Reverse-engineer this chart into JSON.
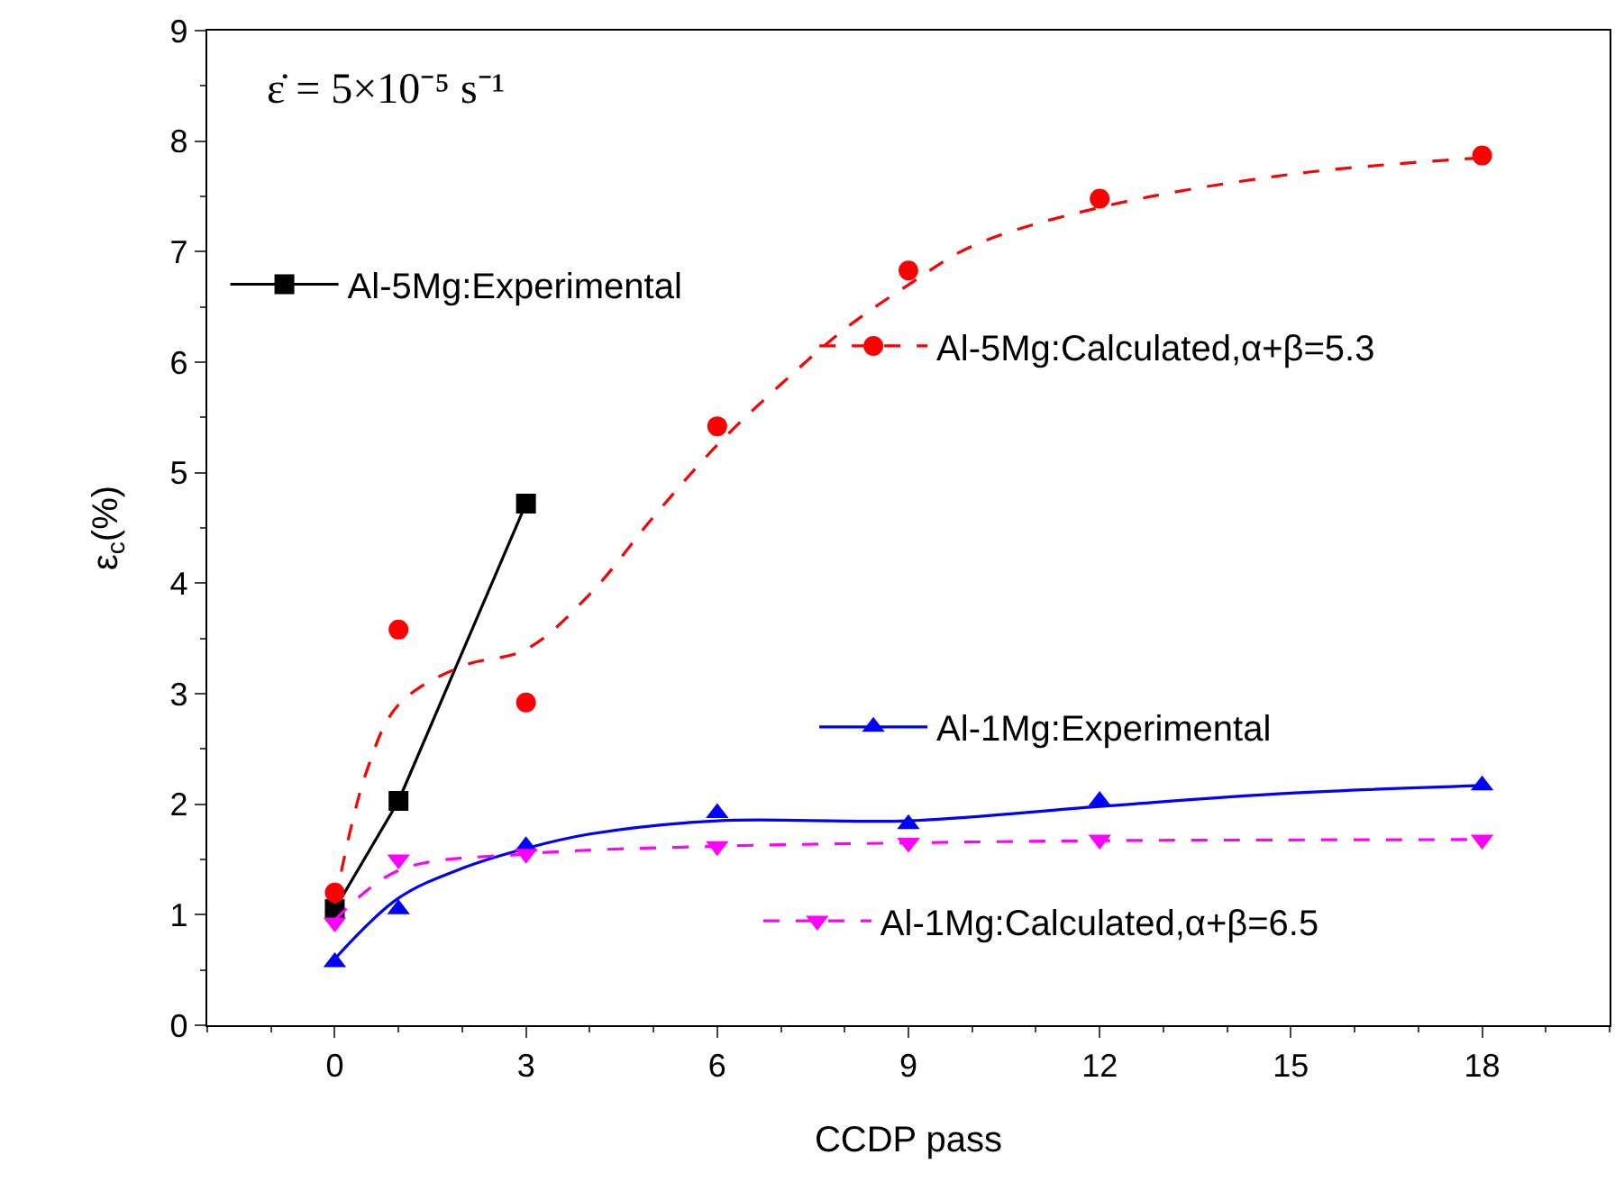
{
  "chart_data": {
    "type": "scatter",
    "xlabel": "CCDP pass",
    "ylabel": "ε$_{c}$(%)",
    "annotations": [
      "ε̇ = 5×10⁻⁵ s⁻¹"
    ],
    "xlim": [
      -2,
      20
    ],
    "xticks": [
      0,
      3,
      6,
      9,
      12,
      15,
      18
    ],
    "ylim": [
      0,
      9
    ],
    "yticks": [
      0,
      1,
      2,
      3,
      4,
      5,
      6,
      7,
      8,
      9
    ],
    "grid": false,
    "legend": "left",
    "series": [
      {
        "name": "Al-5Mg:Experimental",
        "type": "line",
        "color": "#000000",
        "marker": "square",
        "line_style": "solid",
        "x": [
          0,
          1,
          3
        ],
        "values": [
          1.05,
          2.03,
          4.72
        ]
      },
      {
        "name": "Al-5Mg:Calculated,α+β=5.3",
        "color": "#ff0000",
        "marker": "circle",
        "x": [
          0,
          1,
          3,
          6,
          9,
          12,
          18
        ],
        "values": [
          1.2,
          3.58,
          2.92,
          5.42,
          6.83,
          7.48,
          7.87
        ]
      },
      {
        "type": "line",
        "color": "#ff0000",
        "marker": "none",
        "line_style": "dashed",
        "x": [
          0,
          0.5,
          1,
          2,
          3,
          4,
          5,
          6,
          7,
          8,
          9,
          10,
          12,
          15,
          18
        ],
        "values": [
          1.1,
          2.3,
          2.9,
          3.25,
          3.4,
          3.9,
          4.6,
          5.25,
          5.8,
          6.3,
          6.7,
          7.05,
          7.4,
          7.7,
          7.85
        ]
      },
      {
        "name": "Al-1Mg:Experimental",
        "color": "#0000ff",
        "marker": "triangle",
        "x": [
          0,
          1,
          3,
          6,
          9,
          12,
          18
        ],
        "values": [
          0.57,
          1.05,
          1.62,
          1.92,
          1.82,
          2.03,
          2.17
        ]
      },
      {
        "type": "line",
        "color": "#0000ff",
        "marker": "none",
        "line_style": "solid",
        "x": [
          0,
          1,
          2,
          3,
          4,
          6,
          9,
          12,
          15,
          18
        ],
        "values": [
          0.6,
          1.15,
          1.42,
          1.6,
          1.73,
          1.85,
          1.85,
          1.98,
          2.1,
          2.17
        ]
      },
      {
        "name": "Al-1Mg:Calculated,α+β=6.5",
        "color": "#ff00ff",
        "marker": "triangle-down",
        "x": [
          0,
          1,
          3,
          6,
          9,
          12,
          18
        ],
        "values": [
          0.93,
          1.5,
          1.55,
          1.62,
          1.65,
          1.68,
          1.68
        ]
      },
      {
        "type": "line",
        "color": "#ff00ff",
        "marker": "none",
        "line_style": "dashed",
        "x": [
          0,
          1,
          3,
          6,
          9,
          12,
          18
        ],
        "values": [
          0.95,
          1.4,
          1.55,
          1.62,
          1.65,
          1.67,
          1.68
        ]
      }
    ]
  }
}
